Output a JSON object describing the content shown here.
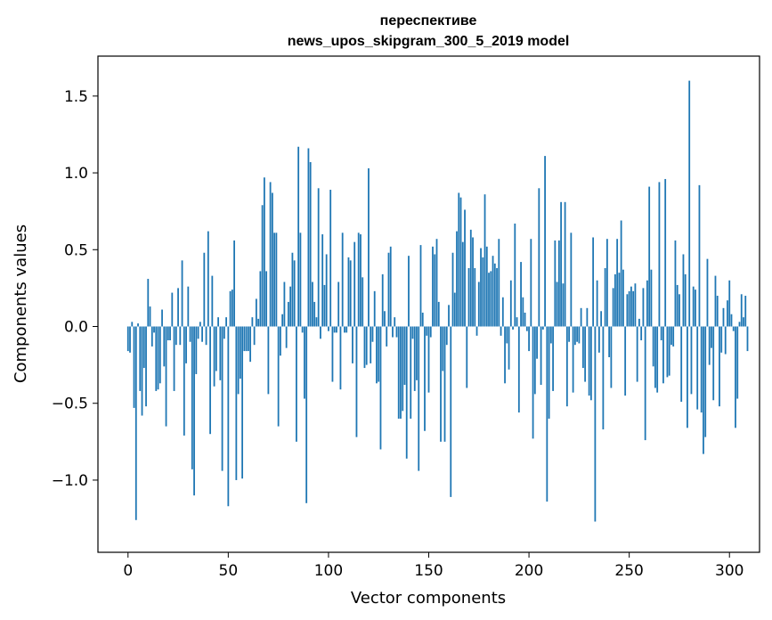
{
  "chart_data": {
    "type": "bar",
    "title": "переспективе",
    "subtitle": "news_upos_skipgram_300_5_2019 model",
    "xlabel": "Vector components",
    "ylabel": "Components values",
    "xlim": [
      -15,
      315
    ],
    "ylim": [
      -1.47,
      1.76
    ],
    "xticks": [
      0,
      50,
      100,
      150,
      200,
      250,
      300
    ],
    "yticks": [
      -1.0,
      -0.5,
      0.0,
      0.5,
      1.0,
      1.5
    ],
    "ytick_labels": [
      "−1.0",
      "−0.5",
      "0.0",
      "0.5",
      "1.0",
      "1.5"
    ],
    "bar_color": "#1f77b4",
    "values": [
      -0.16,
      -0.17,
      0.03,
      -0.53,
      -1.26,
      0.02,
      -0.42,
      -0.58,
      -0.27,
      -0.52,
      0.31,
      0.13,
      -0.13,
      -0.04,
      -0.42,
      -0.41,
      -0.37,
      0.11,
      -0.26,
      -0.65,
      -0.09,
      -0.09,
      0.22,
      -0.42,
      -0.12,
      0.25,
      -0.12,
      0.43,
      -0.71,
      -0.24,
      0.26,
      -0.1,
      -0.93,
      -1.1,
      -0.31,
      -0.08,
      0.03,
      -0.1,
      0.48,
      -0.12,
      0.62,
      -0.7,
      0.33,
      -0.39,
      -0.29,
      0.06,
      -0.35,
      -0.94,
      -0.08,
      0.06,
      -1.17,
      0.23,
      0.24,
      0.56,
      -1.0,
      -0.44,
      -0.34,
      -0.99,
      -0.16,
      -0.16,
      -0.16,
      -0.23,
      0.06,
      -0.12,
      0.18,
      0.05,
      0.36,
      0.79,
      0.97,
      0.36,
      -0.44,
      0.94,
      0.87,
      0.61,
      0.61,
      -0.65,
      -0.19,
      0.08,
      0.29,
      -0.14,
      0.16,
      0.26,
      0.48,
      0.43,
      -0.75,
      1.17,
      0.61,
      -0.04,
      -0.47,
      -1.15,
      1.16,
      1.07,
      0.29,
      0.16,
      0.06,
      0.9,
      -0.08,
      0.6,
      0.27,
      0.47,
      -0.03,
      0.89,
      -0.36,
      -0.04,
      -0.04,
      0.29,
      -0.41,
      0.61,
      -0.04,
      -0.04,
      0.45,
      0.43,
      -0.24,
      0.55,
      -0.72,
      0.61,
      0.6,
      0.32,
      -0.27,
      -0.25,
      1.03,
      -0.24,
      -0.1,
      0.23,
      -0.37,
      -0.36,
      -0.8,
      0.34,
      0.1,
      -0.13,
      0.48,
      0.52,
      -0.07,
      0.06,
      -0.07,
      -0.6,
      -0.6,
      -0.55,
      -0.38,
      -0.86,
      0.46,
      -0.6,
      -0.08,
      -0.42,
      -0.35,
      -0.94,
      0.53,
      0.09,
      -0.68,
      -0.06,
      -0.43,
      -0.07,
      0.52,
      0.47,
      0.57,
      0.16,
      -0.75,
      -0.29,
      -0.75,
      -0.12,
      0.14,
      -1.11,
      0.48,
      0.22,
      0.62,
      0.87,
      0.84,
      0.55,
      0.76,
      -0.4,
      0.38,
      0.63,
      0.58,
      0.38,
      -0.06,
      0.29,
      0.51,
      0.45,
      0.86,
      0.52,
      0.35,
      0.36,
      0.46,
      0.41,
      0.38,
      0.57,
      -0.06,
      0.19,
      -0.37,
      -0.11,
      -0.28,
      0.3,
      -0.02,
      0.67,
      0.06,
      -0.56,
      0.42,
      0.19,
      0.09,
      -0.03,
      -0.16,
      0.57,
      -0.73,
      -0.44,
      -0.21,
      0.9,
      -0.38,
      -0.02,
      1.11,
      -1.14,
      -0.6,
      -0.11,
      -0.42,
      0.56,
      0.29,
      0.56,
      0.81,
      0.28,
      0.81,
      -0.52,
      -0.1,
      0.61,
      -0.43,
      -0.12,
      -0.1,
      -0.11,
      0.12,
      -0.27,
      -0.36,
      0.12,
      -0.45,
      -0.48,
      0.58,
      -1.27,
      0.3,
      -0.17,
      0.1,
      -0.67,
      0.38,
      0.57,
      -0.2,
      -0.4,
      0.25,
      0.34,
      0.57,
      0.35,
      0.69,
      0.37,
      -0.45,
      0.21,
      0.23,
      0.26,
      0.23,
      0.28,
      -0.36,
      0.05,
      -0.09,
      0.25,
      -0.74,
      0.3,
      0.91,
      0.37,
      -0.26,
      -0.4,
      -0.43,
      0.94,
      -0.09,
      -0.37,
      0.96,
      -0.33,
      -0.32,
      -0.12,
      -0.13,
      0.56,
      0.27,
      0.21,
      -0.49,
      0.47,
      0.34,
      -0.66,
      1.6,
      -0.44,
      0.26,
      0.24,
      -0.54,
      0.92,
      -0.56,
      -0.83,
      -0.72,
      0.44,
      -0.25,
      -0.14,
      -0.48,
      0.33,
      0.2,
      -0.52,
      -0.17,
      0.12,
      -0.18,
      0.17,
      0.3,
      0.08,
      -0.03,
      -0.66,
      -0.47,
      0.03,
      0.21,
      0.06,
      0.2,
      -0.16
    ]
  }
}
